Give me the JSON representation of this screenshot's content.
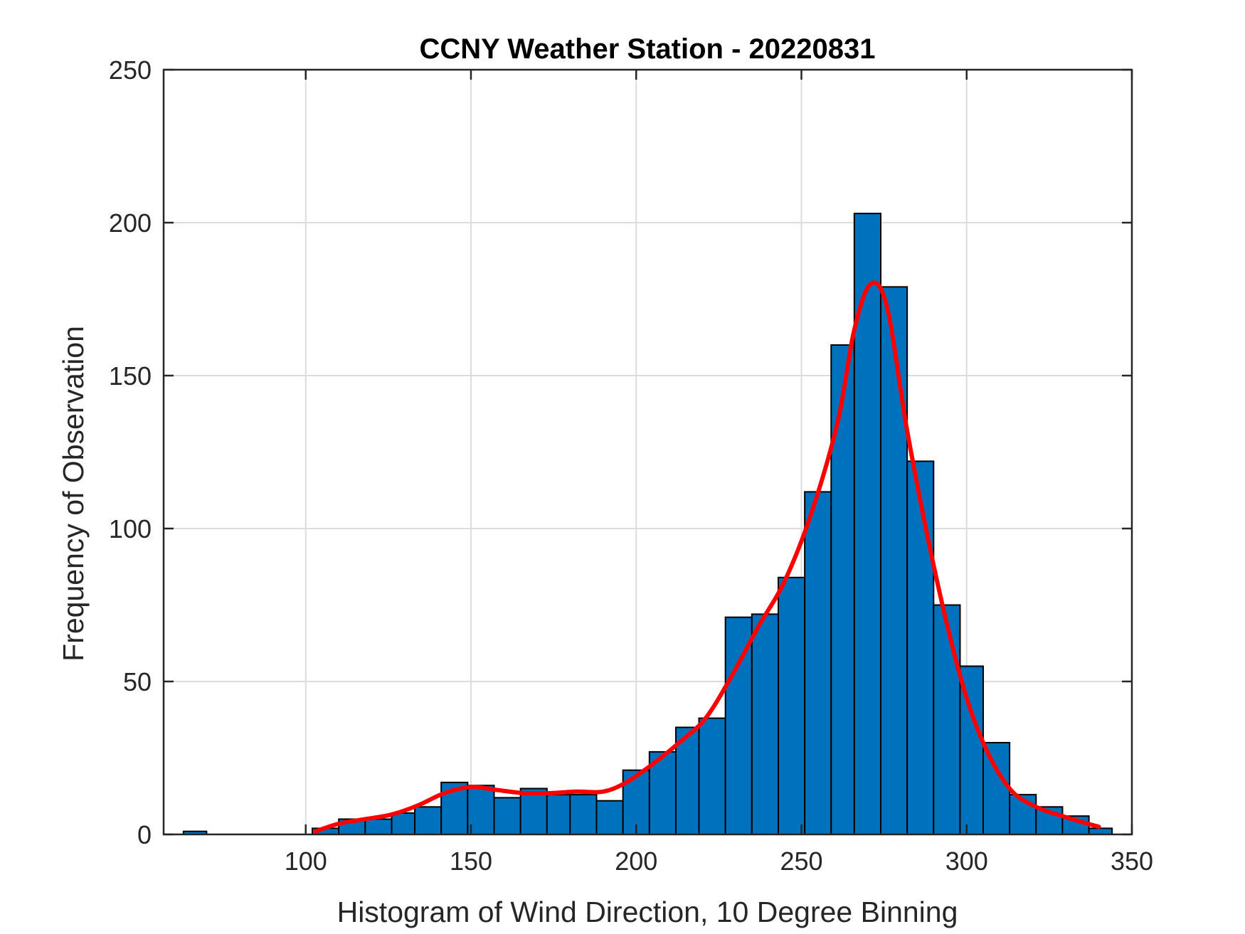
{
  "chart_data": {
    "type": "bar",
    "title": "CCNY Weather Station - 20220831",
    "xlabel": "Histogram of Wind Direction, 10 Degree Binning",
    "ylabel": "Frequency of Observation",
    "xlim": [
      57,
      350
    ],
    "ylim": [
      0,
      250
    ],
    "xticks": [
      100,
      150,
      200,
      250,
      300,
      350
    ],
    "yticks": [
      0,
      50,
      100,
      150,
      200,
      250
    ],
    "grid": true,
    "bar_color": "#0072BD",
    "curve_color": "#FF0000",
    "bins": [
      {
        "start": 63,
        "end": 70,
        "count": 1
      },
      {
        "start": 102,
        "end": 110,
        "count": 2
      },
      {
        "start": 110,
        "end": 118,
        "count": 5
      },
      {
        "start": 118,
        "end": 126,
        "count": 5
      },
      {
        "start": 126,
        "end": 133,
        "count": 7
      },
      {
        "start": 133,
        "end": 141,
        "count": 9
      },
      {
        "start": 141,
        "end": 149,
        "count": 17
      },
      {
        "start": 149,
        "end": 157,
        "count": 16
      },
      {
        "start": 157,
        "end": 165,
        "count": 12
      },
      {
        "start": 165,
        "end": 173,
        "count": 15
      },
      {
        "start": 173,
        "end": 180,
        "count": 13
      },
      {
        "start": 180,
        "end": 188,
        "count": 13
      },
      {
        "start": 188,
        "end": 196,
        "count": 11
      },
      {
        "start": 196,
        "end": 204,
        "count": 21
      },
      {
        "start": 204,
        "end": 212,
        "count": 27
      },
      {
        "start": 212,
        "end": 219,
        "count": 35
      },
      {
        "start": 219,
        "end": 227,
        "count": 38
      },
      {
        "start": 227,
        "end": 235,
        "count": 71
      },
      {
        "start": 235,
        "end": 243,
        "count": 72
      },
      {
        "start": 243,
        "end": 251,
        "count": 84
      },
      {
        "start": 251,
        "end": 259,
        "count": 112
      },
      {
        "start": 259,
        "end": 266,
        "count": 160
      },
      {
        "start": 266,
        "end": 274,
        "count": 203
      },
      {
        "start": 274,
        "end": 282,
        "count": 179
      },
      {
        "start": 282,
        "end": 290,
        "count": 122
      },
      {
        "start": 290,
        "end": 298,
        "count": 75
      },
      {
        "start": 298,
        "end": 305,
        "count": 55
      },
      {
        "start": 305,
        "end": 313,
        "count": 30
      },
      {
        "start": 313,
        "end": 321,
        "count": 13
      },
      {
        "start": 321,
        "end": 329,
        "count": 9
      },
      {
        "start": 329,
        "end": 337,
        "count": 6
      },
      {
        "start": 337,
        "end": 344,
        "count": 2
      }
    ],
    "fit_curve": [
      [
        103,
        1
      ],
      [
        110,
        3.5
      ],
      [
        118,
        5
      ],
      [
        126,
        6.5
      ],
      [
        134,
        9.5
      ],
      [
        142,
        13.5
      ],
      [
        150,
        15.5
      ],
      [
        158,
        14.5
      ],
      [
        166,
        13.5
      ],
      [
        174,
        13.5
      ],
      [
        182,
        14
      ],
      [
        190,
        14
      ],
      [
        197,
        17
      ],
      [
        205,
        23
      ],
      [
        213,
        30
      ],
      [
        221,
        38
      ],
      [
        229,
        52
      ],
      [
        237,
        68
      ],
      [
        245,
        83
      ],
      [
        253,
        105
      ],
      [
        261,
        135
      ],
      [
        266,
        165
      ],
      [
        271,
        180
      ],
      [
        276,
        172
      ],
      [
        282,
        132
      ],
      [
        290,
        88
      ],
      [
        298,
        52
      ],
      [
        305,
        30
      ],
      [
        313,
        15
      ],
      [
        321,
        9
      ],
      [
        329,
        6
      ],
      [
        335,
        4
      ],
      [
        340,
        2.5
      ]
    ]
  }
}
